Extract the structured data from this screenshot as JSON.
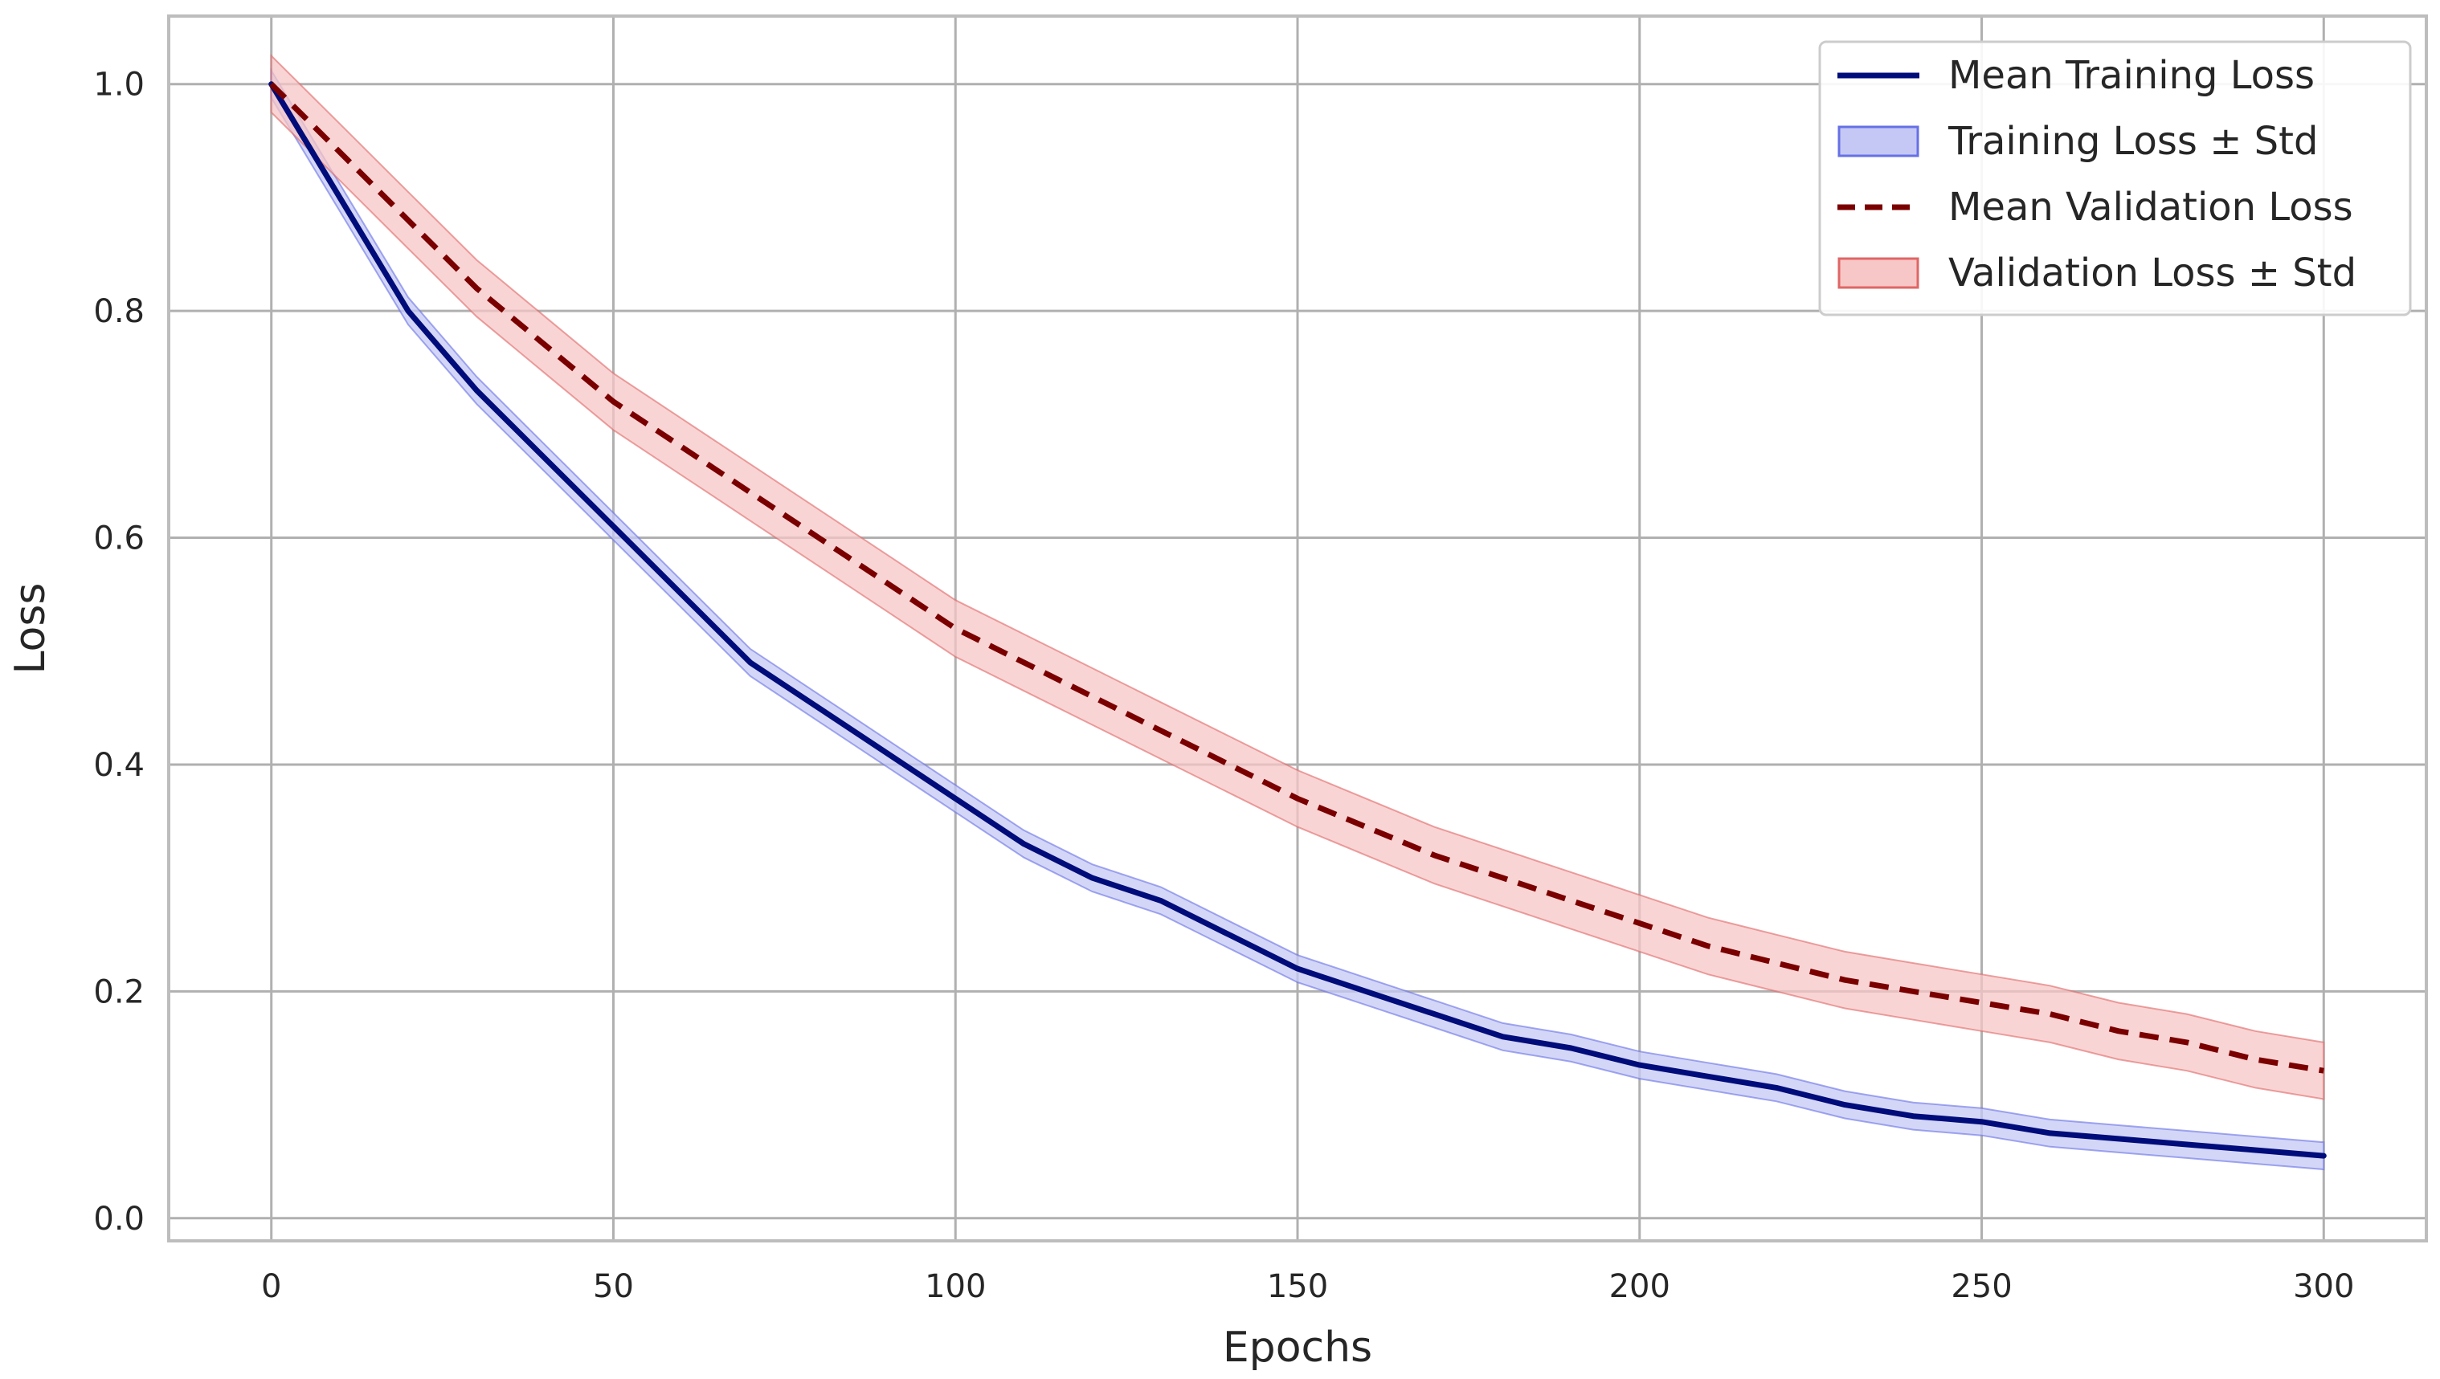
{
  "chart_data": {
    "type": "line",
    "title": "",
    "xlabel": "Epochs",
    "ylabel": "Loss",
    "xlim": [
      -15,
      315
    ],
    "ylim": [
      -0.02,
      1.06
    ],
    "xticks": [
      0,
      50,
      100,
      150,
      200,
      250,
      300
    ],
    "yticks": [
      0.0,
      0.2,
      0.4,
      0.6,
      0.8,
      1.0
    ],
    "xtick_labels": [
      "0",
      "50",
      "100",
      "150",
      "200",
      "250",
      "300"
    ],
    "ytick_labels": [
      "0.0",
      "0.2",
      "0.4",
      "0.6",
      "0.8",
      "1.0"
    ],
    "grid": true,
    "legend_position": "top-right",
    "x": [
      0,
      10,
      20,
      30,
      40,
      50,
      60,
      70,
      80,
      90,
      100,
      110,
      120,
      130,
      140,
      150,
      160,
      170,
      180,
      190,
      200,
      210,
      220,
      230,
      240,
      250,
      260,
      270,
      280,
      290,
      300
    ],
    "series": [
      {
        "name": "Mean Training Loss",
        "style": "solid",
        "color": "#000c7a",
        "values": [
          1.0,
          0.9,
          0.8,
          0.73,
          0.67,
          0.61,
          0.55,
          0.49,
          0.45,
          0.41,
          0.37,
          0.33,
          0.3,
          0.28,
          0.25,
          0.22,
          0.2,
          0.18,
          0.16,
          0.15,
          0.135,
          0.125,
          0.115,
          0.1,
          0.09,
          0.085,
          0.075,
          0.07,
          0.065,
          0.06,
          0.055
        ]
      },
      {
        "name": "Mean Validation Loss",
        "style": "dashed",
        "color": "#7a0000",
        "values": [
          1.0,
          0.94,
          0.88,
          0.82,
          0.77,
          0.72,
          0.68,
          0.64,
          0.6,
          0.56,
          0.52,
          0.49,
          0.46,
          0.43,
          0.4,
          0.37,
          0.345,
          0.32,
          0.3,
          0.28,
          0.26,
          0.24,
          0.225,
          0.21,
          0.2,
          0.19,
          0.18,
          0.165,
          0.155,
          0.14,
          0.13
        ]
      }
    ],
    "bands": [
      {
        "name": "Training Loss ± Std",
        "color": "#6670e6",
        "fill": "#c5c8f4",
        "std": 0.012
      },
      {
        "name": "Validation Loss ± Std",
        "color": "#e06666",
        "fill": "#f7c6c6",
        "std": 0.025
      }
    ]
  }
}
